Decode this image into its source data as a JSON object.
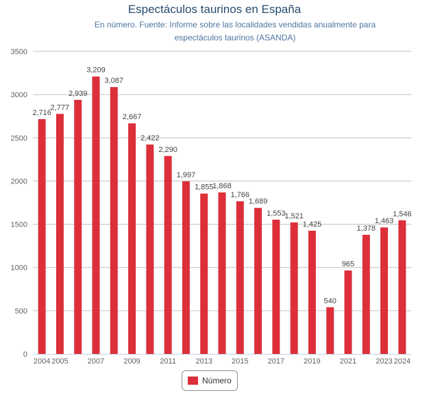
{
  "chart_data": {
    "type": "bar",
    "title": "Espectáculos taurinos en España",
    "subtitle_lines": [
      "En número. Fuente: Informe sobre las localidades vendidas anualmente para",
      "espectáculos taurinos (ASANDA)"
    ],
    "categories": [
      "2004",
      "2005",
      "2006",
      "2007",
      "2008",
      "2009",
      "2010",
      "2011",
      "2012",
      "2013",
      "2014",
      "2015",
      "2016",
      "2017",
      "2018",
      "2019",
      "2020",
      "2021",
      "2022",
      "2023",
      "2024"
    ],
    "x_tick_labels": [
      "2004",
      "2005",
      "",
      "2007",
      "",
      "2009",
      "",
      "2011",
      "",
      "2013",
      "",
      "2015",
      "",
      "2017",
      "",
      "2019",
      "",
      "2021",
      "",
      "2023",
      "2024"
    ],
    "data_labels": [
      "2,716",
      "2,777",
      "2,939",
      "3,209",
      "3,087",
      "2,667",
      "2,422",
      "2,290",
      "1,997",
      "1,855",
      "1,868",
      "1,766",
      "1,689",
      "1,553",
      "1,521",
      "1,425",
      "540",
      "965",
      "1,378",
      "1,463",
      "1,546"
    ],
    "series": [
      {
        "name": "Número",
        "color": "#dc2f3a",
        "values": [
          2716,
          2777,
          2939,
          3209,
          3087,
          2667,
          2422,
          2290,
          1997,
          1855,
          1868,
          1766,
          1689,
          1553,
          1521,
          1425,
          540,
          965,
          1378,
          1463,
          1546
        ]
      }
    ],
    "y_ticks": [
      "0",
      "500",
      "1000",
      "1500",
      "2000",
      "2500",
      "3000",
      "3500"
    ],
    "ylim": [
      0,
      3500
    ],
    "grid": true,
    "legend_position": "bottom-center"
  }
}
